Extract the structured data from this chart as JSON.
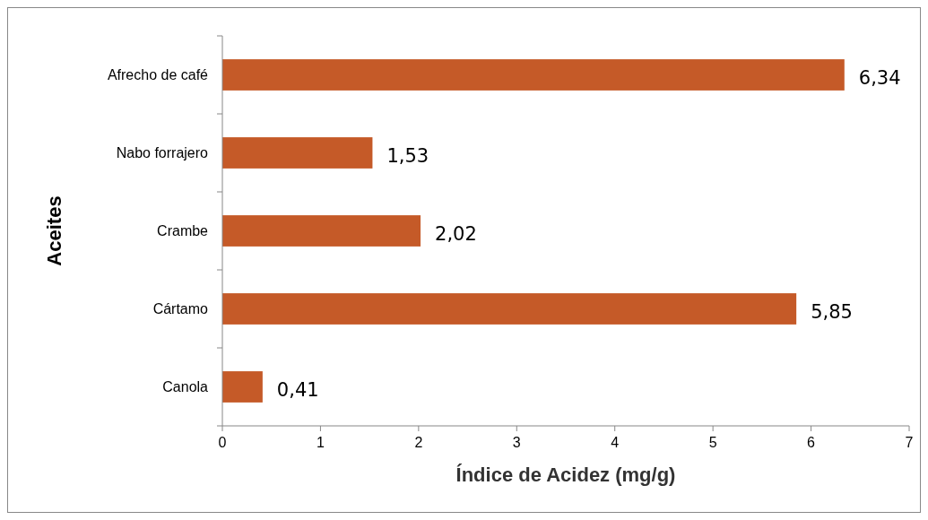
{
  "chart_data": {
    "type": "bar",
    "orientation": "horizontal",
    "categories": [
      "Afrecho de café",
      "Nabo forrajero",
      "Crambe",
      "Cártamo",
      "Canola"
    ],
    "values": [
      6.34,
      1.53,
      2.02,
      5.85,
      0.41
    ],
    "value_labels": [
      "6,34",
      "1,53",
      "2,02",
      "5,85",
      "0,41"
    ],
    "color": "#c55a28",
    "xlabel": "Índice de Acidez (mg/g)",
    "ylabel": "Aceites",
    "xlim": [
      0,
      7
    ],
    "xticks": [
      0,
      1,
      2,
      3,
      4,
      5,
      6,
      7
    ],
    "grid": false
  }
}
